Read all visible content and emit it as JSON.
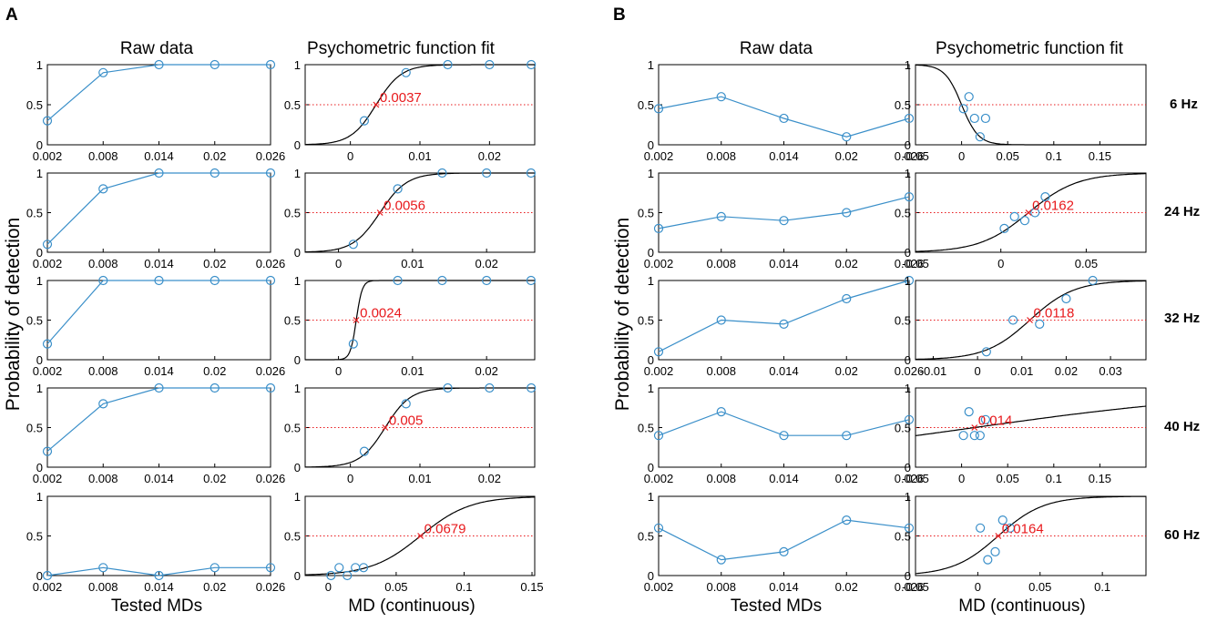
{
  "panels": {
    "A": {
      "letter": "A",
      "col_titles": [
        "Raw data",
        "Psychometric function fit"
      ],
      "xlabels": [
        "Tested MDs",
        "MD (continuous)"
      ],
      "ylabel": "Probability of detection"
    },
    "B": {
      "letter": "B",
      "col_titles": [
        "Raw data",
        "Psychometric function fit"
      ],
      "xlabels": [
        "Tested MDs",
        "MD (continuous)"
      ],
      "ylabel": "Probability of detection"
    }
  },
  "colors": {
    "data": "#3a8fc9",
    "fit": "#000000",
    "threshold": "#e8191c",
    "axis": "#000000"
  },
  "chart_data": [
    {
      "id": "A-raw-1",
      "type": "line",
      "x": [
        0.002,
        0.008,
        0.014,
        0.02,
        0.026
      ],
      "y": [
        0.3,
        0.9,
        1,
        1,
        1
      ],
      "xlim": [
        0.002,
        0.026
      ],
      "ylim": [
        0,
        1
      ],
      "xticks": [
        "0.002",
        "0.008",
        "0.014",
        "0.02",
        "0.026"
      ],
      "xtick_values": [
        0.002,
        0.008,
        0.014,
        0.02,
        0.026
      ],
      "yticks": [
        "0",
        "0.5",
        "1"
      ]
    },
    {
      "id": "A-fit-1",
      "type": "scatter",
      "x": [
        0.002,
        0.008,
        0.014,
        0.02,
        0.026
      ],
      "y": [
        0.3,
        0.9,
        1,
        1,
        1
      ],
      "xlim": [
        -0.0065,
        0.0265
      ],
      "ylim": [
        0,
        1
      ],
      "xticks": [
        "0",
        "0.01",
        "0.02"
      ],
      "xtick_values": [
        0,
        0.01,
        0.02
      ],
      "yticks": [
        "0",
        "0.5",
        "1"
      ],
      "threshold": 0.0037,
      "threshold_label": "0.0037",
      "slope": 550
    },
    {
      "id": "A-raw-2",
      "type": "line",
      "x": [
        0.002,
        0.008,
        0.014,
        0.02,
        0.026
      ],
      "y": [
        0.1,
        0.8,
        1,
        1,
        1
      ],
      "xlim": [
        0.002,
        0.026
      ],
      "ylim": [
        0,
        1
      ],
      "xticks": [
        "0.002",
        "0.008",
        "0.014",
        "0.02",
        "0.026"
      ],
      "xtick_values": [
        0.002,
        0.008,
        0.014,
        0.02,
        0.026
      ],
      "yticks": [
        "0",
        "0.5",
        "1"
      ]
    },
    {
      "id": "A-fit-2",
      "type": "scatter",
      "x": [
        0.002,
        0.008,
        0.014,
        0.02,
        0.026
      ],
      "y": [
        0.1,
        0.8,
        1,
        1,
        1
      ],
      "xlim": [
        -0.0045,
        0.0265
      ],
      "ylim": [
        0,
        1
      ],
      "xticks": [
        "0",
        "0.01",
        "0.02"
      ],
      "xtick_values": [
        0,
        0.01,
        0.02
      ],
      "yticks": [
        "0",
        "0.5",
        "1"
      ],
      "threshold": 0.0056,
      "threshold_label": "0.0056",
      "slope": 550
    },
    {
      "id": "A-raw-3",
      "type": "line",
      "x": [
        0.002,
        0.008,
        0.014,
        0.02,
        0.026
      ],
      "y": [
        0.2,
        1,
        1,
        1,
        1
      ],
      "xlim": [
        0.002,
        0.026
      ],
      "ylim": [
        0,
        1
      ],
      "xticks": [
        "0.002",
        "0.008",
        "0.014",
        "0.02",
        "0.026"
      ],
      "xtick_values": [
        0.002,
        0.008,
        0.014,
        0.02,
        0.026
      ],
      "yticks": [
        "0",
        "0.5",
        "1"
      ]
    },
    {
      "id": "A-fit-3",
      "type": "scatter",
      "x": [
        0.002,
        0.008,
        0.014,
        0.02,
        0.026
      ],
      "y": [
        0.2,
        1,
        1,
        1,
        1
      ],
      "xlim": [
        -0.0045,
        0.0265
      ],
      "ylim": [
        0,
        1
      ],
      "xticks": [
        "0",
        "0.01",
        "0.02"
      ],
      "xtick_values": [
        0,
        0.01,
        0.02
      ],
      "yticks": [
        "0",
        "0.5",
        "1"
      ],
      "threshold": 0.0024,
      "threshold_label": "0.0024",
      "slope": 2500
    },
    {
      "id": "A-raw-4",
      "type": "line",
      "x": [
        0.002,
        0.008,
        0.014,
        0.02,
        0.026
      ],
      "y": [
        0.2,
        0.8,
        1,
        1,
        1
      ],
      "xlim": [
        0.002,
        0.026
      ],
      "ylim": [
        0,
        1
      ],
      "xticks": [
        "0.002",
        "0.008",
        "0.014",
        "0.02",
        "0.026"
      ],
      "xtick_values": [
        0.002,
        0.008,
        0.014,
        0.02,
        0.026
      ],
      "yticks": [
        "0",
        "0.5",
        "1"
      ]
    },
    {
      "id": "A-fit-4",
      "type": "scatter",
      "x": [
        0.002,
        0.008,
        0.014,
        0.02,
        0.026
      ],
      "y": [
        0.2,
        0.8,
        1,
        1,
        1
      ],
      "xlim": [
        -0.0065,
        0.0265
      ],
      "ylim": [
        0,
        1
      ],
      "xticks": [
        "0",
        "0.01",
        "0.02"
      ],
      "xtick_values": [
        0,
        0.01,
        0.02
      ],
      "yticks": [
        "0",
        "0.5",
        "1"
      ],
      "threshold": 0.005,
      "threshold_label": "0.005",
      "slope": 550
    },
    {
      "id": "A-raw-5",
      "type": "line",
      "x": [
        0.002,
        0.008,
        0.014,
        0.02,
        0.026
      ],
      "y": [
        0,
        0.1,
        0,
        0.1,
        0.1
      ],
      "xlim": [
        0.002,
        0.026
      ],
      "ylim": [
        0,
        1
      ],
      "xticks": [
        "0.002",
        "0.008",
        "0.014",
        "0.02",
        "0.026"
      ],
      "xtick_values": [
        0.002,
        0.008,
        0.014,
        0.02,
        0.026
      ],
      "yticks": [
        "0",
        "0.5",
        "1"
      ]
    },
    {
      "id": "A-fit-5",
      "type": "scatter",
      "x": [
        0.002,
        0.008,
        0.014,
        0.02,
        0.026
      ],
      "y": [
        0,
        0.1,
        0,
        0.1,
        0.1
      ],
      "xlim": [
        -0.017,
        0.152
      ],
      "ylim": [
        0,
        1
      ],
      "xticks": [
        "0",
        "0.05",
        "0.1",
        "0.15"
      ],
      "xtick_values": [
        0,
        0.05,
        0.1,
        0.15
      ],
      "yticks": [
        "0",
        "0.5",
        "1"
      ],
      "threshold": 0.0679,
      "threshold_label": "0.0679",
      "slope": 55
    },
    {
      "id": "B-raw-1",
      "type": "line",
      "x": [
        0.002,
        0.008,
        0.014,
        0.02,
        0.026
      ],
      "y": [
        0.45,
        0.6,
        0.33,
        0.1,
        0.33
      ],
      "xlim": [
        0.002,
        0.026
      ],
      "ylim": [
        0,
        1
      ],
      "xticks": [
        "0.002",
        "0.008",
        "0.014",
        "0.02",
        "0.026"
      ],
      "xtick_values": [
        0.002,
        0.008,
        0.014,
        0.02,
        0.026
      ],
      "yticks": [
        "0",
        "0.5",
        "1"
      ],
      "frequency": "6 Hz"
    },
    {
      "id": "B-fit-1",
      "type": "scatter",
      "x": [
        0.002,
        0.008,
        0.014,
        0.02,
        0.026
      ],
      "y": [
        0.45,
        0.6,
        0.33,
        0.1,
        0.33
      ],
      "xlim": [
        -0.05,
        0.2
      ],
      "ylim": [
        0,
        1
      ],
      "xticks": [
        "-0.05",
        "0",
        "0.05",
        "0.1",
        "0.15"
      ],
      "xtick_values": [
        -0.05,
        0,
        0.05,
        0.1,
        0.15
      ],
      "yticks": [
        "0",
        "0.5",
        "1"
      ],
      "threshold": 0.0,
      "threshold_label": "",
      "slope": -110
    },
    {
      "id": "B-raw-2",
      "type": "line",
      "x": [
        0.002,
        0.008,
        0.014,
        0.02,
        0.026
      ],
      "y": [
        0.3,
        0.45,
        0.4,
        0.5,
        0.7
      ],
      "xlim": [
        0.002,
        0.026
      ],
      "ylim": [
        0,
        1
      ],
      "xticks": [
        "0.002",
        "0.008",
        "0.014",
        "0.02",
        "0.026"
      ],
      "xtick_values": [
        0.002,
        0.008,
        0.014,
        0.02,
        0.026
      ],
      "yticks": [
        "0",
        "0.5",
        "1"
      ],
      "frequency": "24 Hz"
    },
    {
      "id": "B-fit-2",
      "type": "scatter",
      "x": [
        0.002,
        0.008,
        0.014,
        0.02,
        0.026
      ],
      "y": [
        0.3,
        0.45,
        0.4,
        0.5,
        0.7
      ],
      "xlim": [
        -0.05,
        0.085
      ],
      "ylim": [
        0,
        1
      ],
      "xticks": [
        "-0.05",
        "0",
        "0.05"
      ],
      "xtick_values": [
        -0.05,
        0,
        0.05
      ],
      "yticks": [
        "0",
        "0.5",
        "1"
      ],
      "threshold": 0.0162,
      "threshold_label": "0.0162",
      "slope": 70
    },
    {
      "id": "B-raw-3",
      "type": "line",
      "x": [
        0.002,
        0.008,
        0.014,
        0.02,
        0.026
      ],
      "y": [
        0.1,
        0.5,
        0.45,
        0.77,
        1
      ],
      "xlim": [
        0.002,
        0.026
      ],
      "ylim": [
        0,
        1
      ],
      "xticks": [
        "0.002",
        "0.008",
        "0.014",
        "0.02",
        "0.026"
      ],
      "xtick_values": [
        0.002,
        0.008,
        0.014,
        0.02,
        0.026
      ],
      "yticks": [
        "0",
        "0.5",
        "1"
      ],
      "frequency": "32 Hz"
    },
    {
      "id": "B-fit-3",
      "type": "scatter",
      "x": [
        0.002,
        0.008,
        0.014,
        0.02,
        0.026
      ],
      "y": [
        0.1,
        0.5,
        0.45,
        0.77,
        1
      ],
      "xlim": [
        -0.014,
        0.038
      ],
      "ylim": [
        0,
        1
      ],
      "xticks": [
        "-0.01",
        "0",
        "0.01",
        "0.02",
        "0.03"
      ],
      "xtick_values": [
        -0.01,
        0,
        0.01,
        0.02,
        0.03
      ],
      "yticks": [
        "0",
        "0.5",
        "1"
      ],
      "threshold": 0.0118,
      "threshold_label": "0.0118",
      "slope": 200
    },
    {
      "id": "B-raw-4",
      "type": "line",
      "x": [
        0.002,
        0.008,
        0.014,
        0.02,
        0.026
      ],
      "y": [
        0.4,
        0.7,
        0.4,
        0.4,
        0.6
      ],
      "xlim": [
        0.002,
        0.026
      ],
      "ylim": [
        0,
        1
      ],
      "xticks": [
        "0.002",
        "0.008",
        "0.014",
        "0.02",
        "0.026"
      ],
      "xtick_values": [
        0.002,
        0.008,
        0.014,
        0.02,
        0.026
      ],
      "yticks": [
        "0",
        "0.5",
        "1"
      ],
      "frequency": "40 Hz"
    },
    {
      "id": "B-fit-4",
      "type": "scatter",
      "x": [
        0.002,
        0.008,
        0.014,
        0.02,
        0.026
      ],
      "y": [
        0.4,
        0.7,
        0.4,
        0.4,
        0.6
      ],
      "xlim": [
        -0.05,
        0.2
      ],
      "ylim": [
        0,
        1
      ],
      "xticks": [
        "-0.05",
        "0",
        "0.05",
        "0.1",
        "0.15"
      ],
      "xtick_values": [
        -0.05,
        0,
        0.05,
        0.1,
        0.15
      ],
      "yticks": [
        "0",
        "0.5",
        "1"
      ],
      "threshold": 0.014,
      "threshold_label": "0.014",
      "slope": 6.5
    },
    {
      "id": "B-raw-5",
      "type": "line",
      "x": [
        0.002,
        0.008,
        0.014,
        0.02,
        0.026
      ],
      "y": [
        0.6,
        0.2,
        0.3,
        0.7,
        0.6
      ],
      "xlim": [
        0.002,
        0.026
      ],
      "ylim": [
        0,
        1
      ],
      "xticks": [
        "0.002",
        "0.008",
        "0.014",
        "0.02",
        "0.026"
      ],
      "xtick_values": [
        0.002,
        0.008,
        0.014,
        0.02,
        0.026
      ],
      "yticks": [
        "0",
        "0.5",
        "1"
      ],
      "frequency": "60 Hz"
    },
    {
      "id": "B-fit-5",
      "type": "scatter",
      "x": [
        0.002,
        0.008,
        0.014,
        0.02,
        0.026
      ],
      "y": [
        0.6,
        0.2,
        0.3,
        0.7,
        0.6
      ],
      "xlim": [
        -0.05,
        0.135
      ],
      "ylim": [
        0,
        1
      ],
      "xticks": [
        "-0.05",
        "0",
        "0.05",
        "0.1"
      ],
      "xtick_values": [
        -0.05,
        0,
        0.05,
        0.1
      ],
      "yticks": [
        "0",
        "0.5",
        "1"
      ],
      "threshold": 0.0164,
      "threshold_label": "0.0164",
      "slope": 55
    }
  ]
}
